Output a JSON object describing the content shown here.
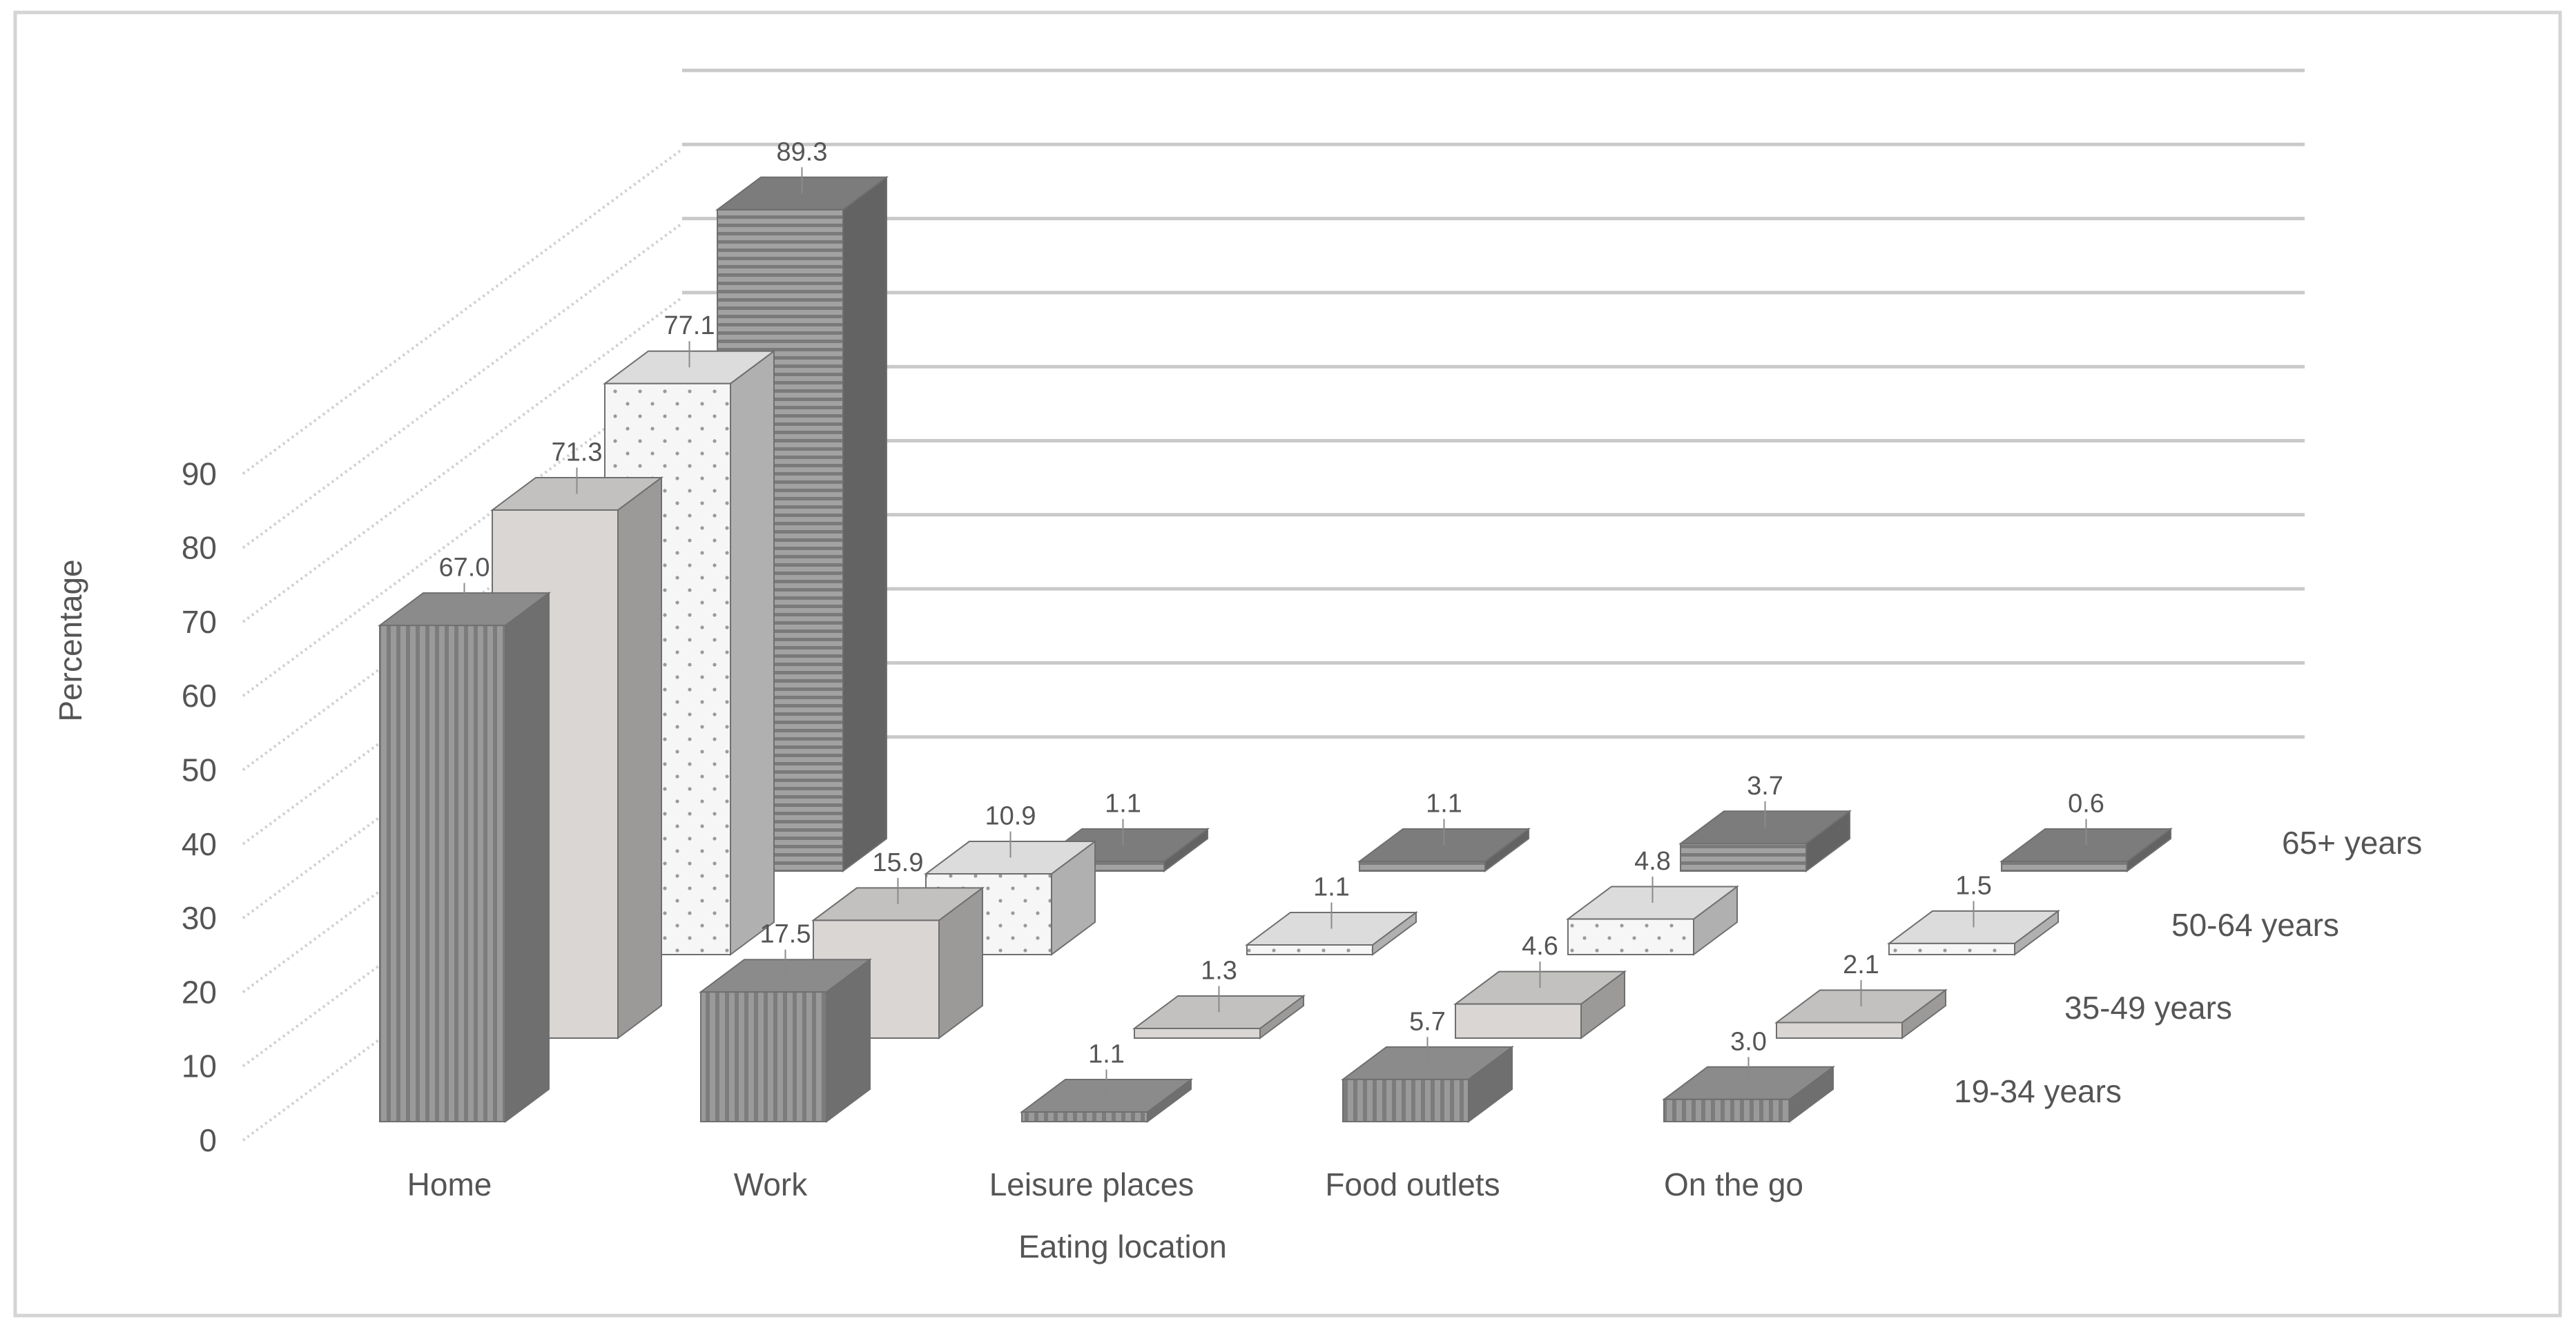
{
  "chart_data": {
    "type": "bar",
    "subtype": "3d-clustered",
    "xlabel": "Eating location",
    "ylabel": "Percentage",
    "ylim": [
      0,
      90
    ],
    "yticks": [
      "0",
      "10",
      "20",
      "30",
      "40",
      "50",
      "60",
      "70",
      "80",
      "90"
    ],
    "grid": true,
    "legend": "depth-axis-right",
    "categories": [
      "Home",
      "Work",
      "Leisure places",
      "Food outlets",
      "On the go"
    ],
    "series": [
      {
        "name": "19-34 years",
        "values": [
          67.0,
          17.5,
          1.1,
          5.7,
          3.0
        ],
        "labels": [
          "67.0",
          "17.5",
          "1.1",
          "5.7",
          "3.0"
        ],
        "fill": "#9a9a9a",
        "pattern": "vertical-stripes"
      },
      {
        "name": "35-49 years",
        "values": [
          71.3,
          15.9,
          1.3,
          4.6,
          2.1
        ],
        "labels": [
          "71.3",
          "15.9",
          "1.3",
          "4.6",
          "2.1"
        ],
        "fill": "#d9d6d4",
        "pattern": "solid"
      },
      {
        "name": "50-64 years",
        "values": [
          77.1,
          10.9,
          1.1,
          4.8,
          1.5
        ],
        "labels": [
          "77.1",
          "10.9",
          "1.1",
          "4.8",
          "1.5"
        ],
        "fill": "#f4f4f4",
        "pattern": "dots"
      },
      {
        "name": "65+ years",
        "values": [
          89.3,
          1.1,
          1.1,
          3.7,
          0.6
        ],
        "labels": [
          "89.3",
          "1.1",
          "1.1",
          "3.7",
          "0.6"
        ],
        "fill": "#8a8a8a",
        "pattern": "horizontal-stripes"
      }
    ]
  },
  "colors": {
    "border": "#d4d4d4",
    "gridline": "#c9c9c9",
    "floor": "#dcdcdc",
    "text": "#555555"
  }
}
